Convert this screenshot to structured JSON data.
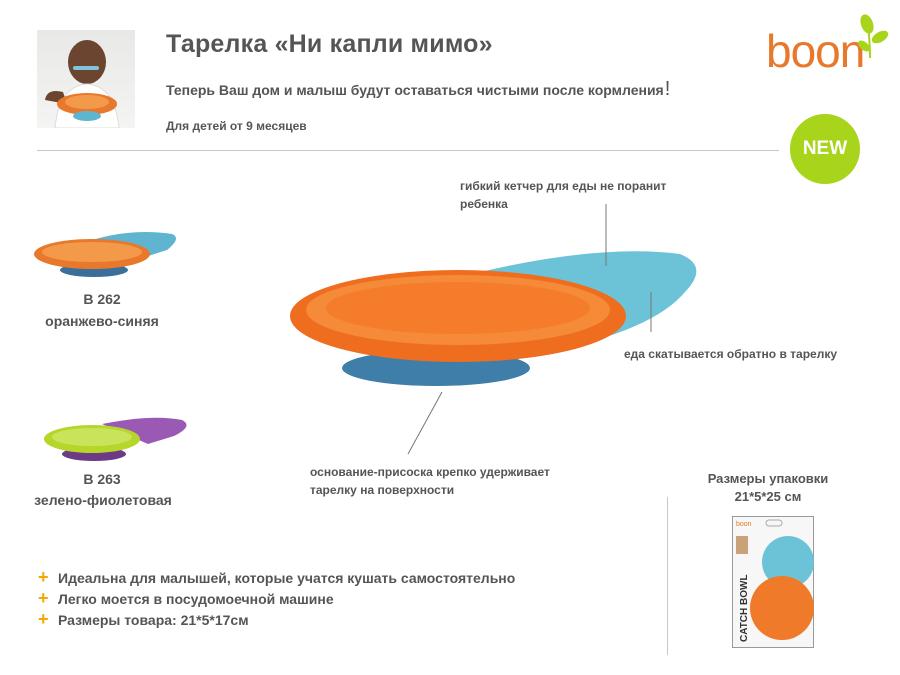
{
  "header": {
    "title": "Тарелка «Ни капли мимо»",
    "subtitle": "Теперь Ваш дом и малыш будут оставаться чистыми после кормления",
    "subtitle_mark": "!",
    "age": "Для детей от 9 месяцев"
  },
  "brand": {
    "logo_text": "boon",
    "badge": "NEW",
    "colors": {
      "orange": "#e8782c",
      "green": "#a8d41c"
    }
  },
  "callouts": {
    "catcher": "гибкий кетчер для еды не поранит ребенка",
    "rollback": "еда скатывается обратно в тарелку",
    "suction": "основание-присоска крепко удерживает тарелку на поверхности"
  },
  "variants": [
    {
      "code": "B 262",
      "color_name": "оранжево-синяя"
    },
    {
      "code": "B 263",
      "color_name": "зелено-фиолетовая"
    }
  ],
  "features": [
    "Идеальна для малышей, которые учатся кушать самостоятельно",
    "Легко моется в посудомоечной машине",
    "Размеры товара: 21*5*17см"
  ],
  "feature_marker": "+",
  "package": {
    "title": "Размеры упаковки",
    "dims": "21*5*25 см",
    "box_text": "CATCH BOWL"
  }
}
